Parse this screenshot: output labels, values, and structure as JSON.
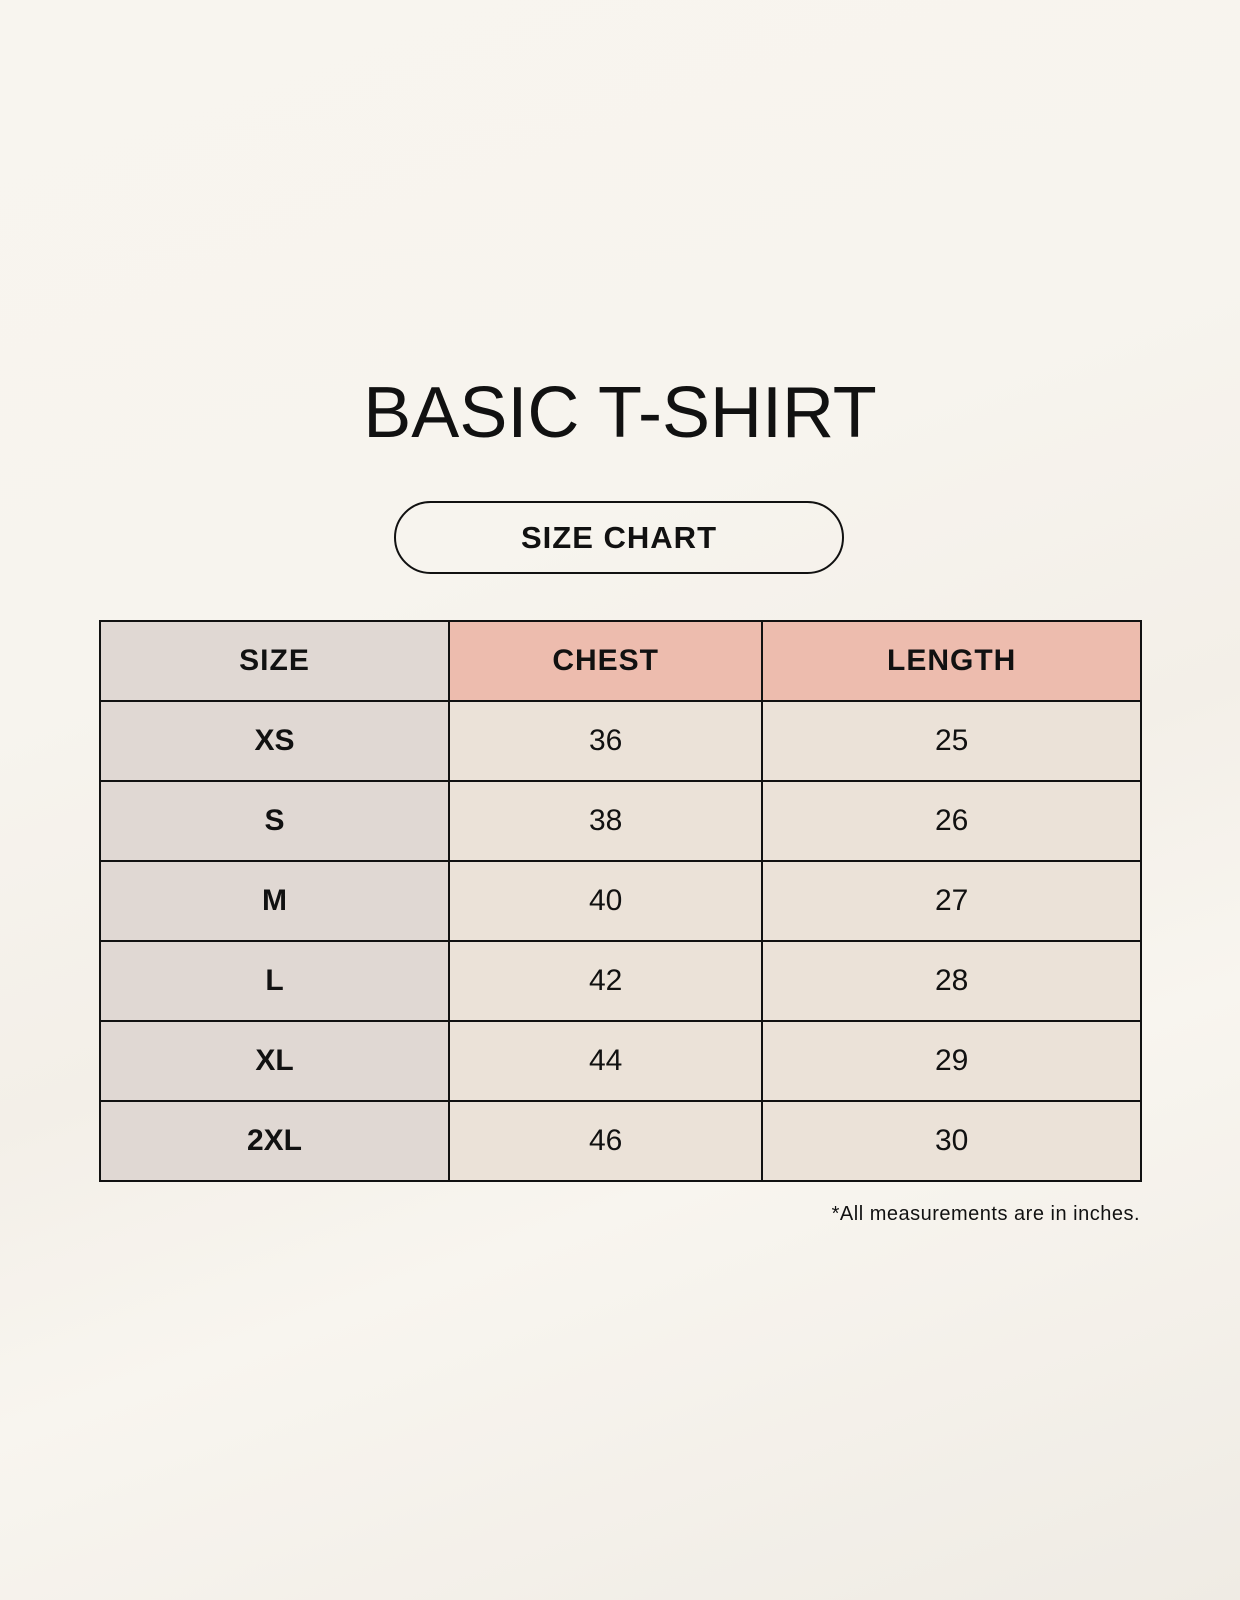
{
  "title": "BASIC T-SHIRT",
  "subtitle": "SIZE CHART",
  "table": {
    "headers": [
      "SIZE",
      "CHEST",
      "LENGTH"
    ],
    "rows": [
      [
        "XS",
        "36",
        "25"
      ],
      [
        "S",
        "38",
        "26"
      ],
      [
        "M",
        "40",
        "27"
      ],
      [
        "L",
        "42",
        "28"
      ],
      [
        "XL",
        "44",
        "29"
      ],
      [
        "2XL",
        "46",
        "30"
      ]
    ]
  },
  "footnote": "*All measurements are in inches.",
  "colors": {
    "header_accent": "#edbcae",
    "size_column": "#e0d8d3",
    "cell": "#ebe2d8"
  }
}
